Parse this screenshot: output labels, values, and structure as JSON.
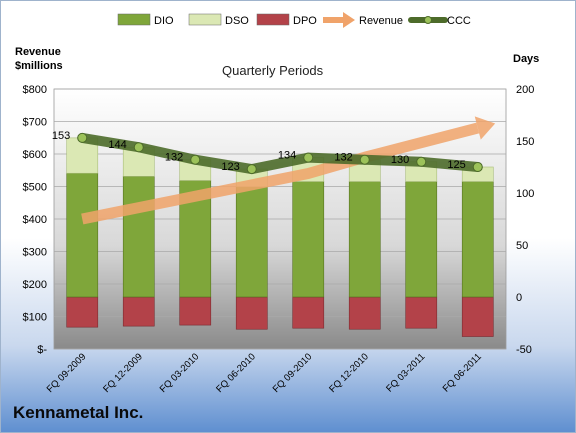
{
  "company": "Kennametal Inc.",
  "chart_data": {
    "type": "bar",
    "title": "Quarterly Periods",
    "ylabel": "Revenue $millions",
    "ylabel_lines": [
      "Revenue",
      "$millions"
    ],
    "y2label": "Days",
    "categories": [
      "FQ 09-2009",
      "FQ 12-2009",
      "FQ 03-2010",
      "FQ 06-2010",
      "FQ 09-2010",
      "FQ 12-2010",
      "FQ 03-2011",
      "FQ 06-2011"
    ],
    "ylim": [
      0,
      800
    ],
    "y_ticks": [
      0,
      100,
      200,
      300,
      400,
      500,
      600,
      700,
      800
    ],
    "y_tick_labels": [
      "$-",
      "$100",
      "$200",
      "$300",
      "$400",
      "$500",
      "$600",
      "$700",
      "$800"
    ],
    "y2lim": [
      -50,
      200
    ],
    "y2_ticks": [
      -50,
      0,
      50,
      100,
      150,
      200
    ],
    "y2_tick_labels": [
      "-50",
      "0",
      "50",
      "100",
      "150",
      "200"
    ],
    "grid": true,
    "legend_position": "top",
    "series": [
      {
        "name": "DIO",
        "type": "stacked-bar",
        "axis": "days",
        "color": "#7fa63a",
        "values": [
          119,
          116,
          112,
          106,
          111,
          111,
          111,
          111
        ]
      },
      {
        "name": "DSO",
        "type": "stacked-bar",
        "axis": "days",
        "color": "#dbe8b4",
        "values": [
          34,
          28,
          20,
          17,
          23,
          21,
          19,
          14
        ]
      },
      {
        "name": "DPO",
        "type": "bar-negative",
        "axis": "days",
        "color": "#b34249",
        "values": [
          -29,
          -28,
          -27,
          -31,
          -30,
          -31,
          -30,
          -38
        ]
      },
      {
        "name": "Revenue",
        "type": "arrow",
        "axis": "revenue",
        "color": "#f0a36a",
        "values": [
          400,
          435,
          470,
          505,
          540,
          590,
          635,
          680
        ]
      },
      {
        "name": "CCC",
        "type": "line",
        "axis": "days",
        "color": "#4d6b2a",
        "values": [
          153,
          144,
          132,
          123,
          134,
          132,
          130,
          125
        ]
      }
    ],
    "data_labels": [
      "153",
      "144",
      "132",
      "123",
      "134",
      "132",
      "130",
      "125"
    ]
  }
}
